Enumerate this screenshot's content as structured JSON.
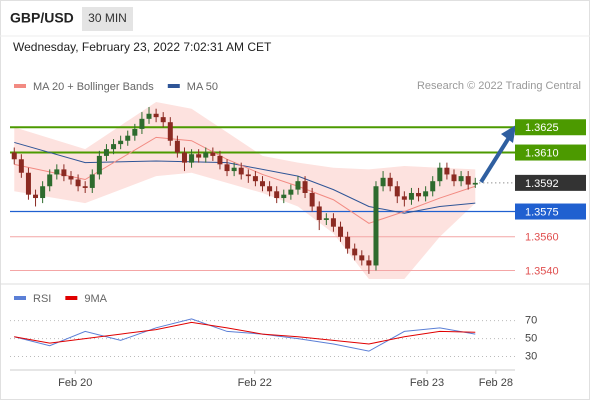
{
  "header": {
    "symbol": "GBP/USD",
    "timeframe": "30 MIN",
    "datetime": "Wednesday, February 23, 2022 7:02:31 AM CET"
  },
  "chart_data": {
    "type": "candlestick",
    "legend": [
      {
        "name": "MA 20 + Bollinger Bands",
        "color": "#f28a82"
      },
      {
        "name": "MA 50",
        "color": "#2f5597"
      }
    ],
    "credit": "Research © 2022 Trading Central",
    "up_color": "#2e6b2e",
    "down_color": "#8b2a22",
    "xlim": [
      -0.6,
      70.6
    ],
    "xticks": [
      {
        "value": 8.6,
        "label": "Feb 20"
      },
      {
        "value": 33.9,
        "label": "Feb 22"
      },
      {
        "value": 58.2,
        "label": "Feb 23"
      },
      {
        "value": 67.9,
        "label": "Feb 28"
      }
    ],
    "ylim": [
      1.3532,
      1.3656
    ],
    "candles": {
      "open": [
        1.361,
        1.3606,
        1.3598,
        1.3585,
        1.3583,
        1.359,
        1.3597,
        1.36,
        1.3596,
        1.3594,
        1.359,
        1.3589,
        1.3597,
        1.3608,
        1.3612,
        1.3615,
        1.3617,
        1.362,
        1.3624,
        1.363,
        1.3633,
        1.3631,
        1.3628,
        1.3617,
        1.361,
        1.3604,
        1.3609,
        1.3607,
        1.361,
        1.3608,
        1.3603,
        1.3599,
        1.3601,
        1.3597,
        1.3596,
        1.3593,
        1.359,
        1.3587,
        1.3583,
        1.3585,
        1.3588,
        1.3593,
        1.3586,
        1.3578,
        1.357,
        1.3571,
        1.3566,
        1.356,
        1.3553,
        1.3549,
        1.3546,
        1.3543,
        1.359,
        1.3595,
        1.359,
        1.3584,
        1.3582,
        1.3586,
        1.3584,
        1.3587,
        1.3593,
        1.3601,
        1.3597,
        1.3593,
        1.3596,
        1.3591
      ],
      "high": [
        1.3613,
        1.3609,
        1.3601,
        1.3588,
        1.3593,
        1.36,
        1.3603,
        1.3603,
        1.3599,
        1.3597,
        1.3593,
        1.36,
        1.3611,
        1.3615,
        1.3618,
        1.362,
        1.3623,
        1.3627,
        1.3634,
        1.3637,
        1.3636,
        1.3634,
        1.3631,
        1.362,
        1.3613,
        1.3612,
        1.3612,
        1.3613,
        1.3613,
        1.3611,
        1.3606,
        1.3604,
        1.3604,
        1.36,
        1.3599,
        1.3596,
        1.3593,
        1.359,
        1.3588,
        1.3591,
        1.3596,
        1.3596,
        1.3589,
        1.3581,
        1.3574,
        1.3574,
        1.3569,
        1.3563,
        1.3556,
        1.3552,
        1.3549,
        1.3593,
        1.3599,
        1.3598,
        1.3593,
        1.3587,
        1.3589,
        1.3589,
        1.359,
        1.3596,
        1.3604,
        1.3604,
        1.36,
        1.3599,
        1.3599,
        1.3595
      ],
      "low": [
        1.3603,
        1.3595,
        1.3582,
        1.3578,
        1.358,
        1.3587,
        1.3594,
        1.3593,
        1.3591,
        1.3587,
        1.3586,
        1.3586,
        1.3594,
        1.3605,
        1.3609,
        1.3612,
        1.3614,
        1.3617,
        1.3621,
        1.3627,
        1.3628,
        1.3625,
        1.3614,
        1.3607,
        1.3599,
        1.3601,
        1.3604,
        1.3604,
        1.3605,
        1.36,
        1.3596,
        1.3596,
        1.3594,
        1.3592,
        1.359,
        1.3587,
        1.3584,
        1.358,
        1.358,
        1.3582,
        1.3585,
        1.3583,
        1.3575,
        1.3564,
        1.3567,
        1.3563,
        1.3557,
        1.355,
        1.3546,
        1.3543,
        1.3538,
        1.354,
        1.3587,
        1.3587,
        1.358,
        1.3578,
        1.3579,
        1.3581,
        1.3581,
        1.3584,
        1.359,
        1.3594,
        1.359,
        1.359,
        1.3588,
        1.3589
      ],
      "close": [
        1.3606,
        1.3598,
        1.3585,
        1.3583,
        1.359,
        1.3597,
        1.36,
        1.3596,
        1.3594,
        1.359,
        1.3589,
        1.3597,
        1.3608,
        1.3612,
        1.3615,
        1.3617,
        1.362,
        1.3624,
        1.363,
        1.3633,
        1.3631,
        1.3628,
        1.3617,
        1.361,
        1.3604,
        1.3609,
        1.3607,
        1.361,
        1.3608,
        1.3603,
        1.3599,
        1.3601,
        1.3597,
        1.3596,
        1.3593,
        1.359,
        1.3587,
        1.3583,
        1.3585,
        1.3588,
        1.3593,
        1.3586,
        1.3578,
        1.357,
        1.3571,
        1.3566,
        1.356,
        1.3553,
        1.3549,
        1.3546,
        1.3543,
        1.359,
        1.3595,
        1.359,
        1.3584,
        1.3582,
        1.3586,
        1.3584,
        1.3587,
        1.3593,
        1.3601,
        1.3597,
        1.3593,
        1.3596,
        1.3591,
        1.3592
      ]
    },
    "bollinger": {
      "x": [
        0,
        10,
        20,
        25,
        30,
        35,
        40,
        45,
        50,
        55,
        60,
        65
      ],
      "upper": [
        1.3625,
        1.3612,
        1.364,
        1.3636,
        1.3622,
        1.3608,
        1.3604,
        1.3601,
        1.36,
        1.3602,
        1.3601,
        1.36
      ],
      "lower": [
        1.3587,
        1.358,
        1.3596,
        1.3598,
        1.3592,
        1.3586,
        1.3578,
        1.3562,
        1.3535,
        1.3535,
        1.356,
        1.358
      ],
      "color": "#fde2df"
    },
    "ma20": {
      "x": [
        0,
        10,
        20,
        25,
        30,
        35,
        40,
        45,
        50,
        55,
        60,
        65
      ],
      "values": [
        1.3603,
        1.3594,
        1.3619,
        1.3617,
        1.3606,
        1.3597,
        1.359,
        1.3582,
        1.3568,
        1.3575,
        1.3583,
        1.359
      ],
      "color": "#f28a82"
    },
    "ma50": {
      "x": [
        0,
        10,
        20,
        30,
        40,
        45,
        50,
        55,
        60,
        65
      ],
      "values": [
        1.3616,
        1.3604,
        1.3605,
        1.3604,
        1.3596,
        1.3588,
        1.3578,
        1.3574,
        1.3578,
        1.358
      ],
      "color": "#2f5597"
    },
    "levels": [
      {
        "value": 1.3625,
        "color": "#4c9a00",
        "kind": "box"
      },
      {
        "value": 1.361,
        "label": "1.3610",
        "color": "#4c9a00",
        "kind": "box"
      },
      {
        "value": 1.3592,
        "color": "#333333",
        "kind": "current"
      },
      {
        "value": 1.3575,
        "color": "#2060d0",
        "kind": "box"
      },
      {
        "value": 1.356,
        "label": "1.3560",
        "color": "#e05050",
        "kind": "text"
      },
      {
        "value": 1.354,
        "label": "1.3540",
        "color": "#e05050",
        "kind": "text"
      }
    ],
    "rsi": {
      "ylim": [
        15,
        93
      ],
      "yticks": [
        70,
        50,
        30
      ],
      "x": [
        0,
        5,
        10,
        15,
        20,
        25,
        30,
        35,
        40,
        45,
        50,
        55,
        60,
        65
      ],
      "series": [
        {
          "name": "RSI",
          "color": "#5b7fd6",
          "values": [
            52,
            42,
            58,
            48,
            62,
            72,
            58,
            55,
            50,
            44,
            36,
            58,
            62,
            55
          ]
        },
        {
          "name": "9MA",
          "color": "#e00000",
          "values": [
            52,
            45,
            50,
            55,
            60,
            68,
            62,
            55,
            52,
            48,
            44,
            52,
            58,
            57
          ]
        }
      ]
    }
  }
}
